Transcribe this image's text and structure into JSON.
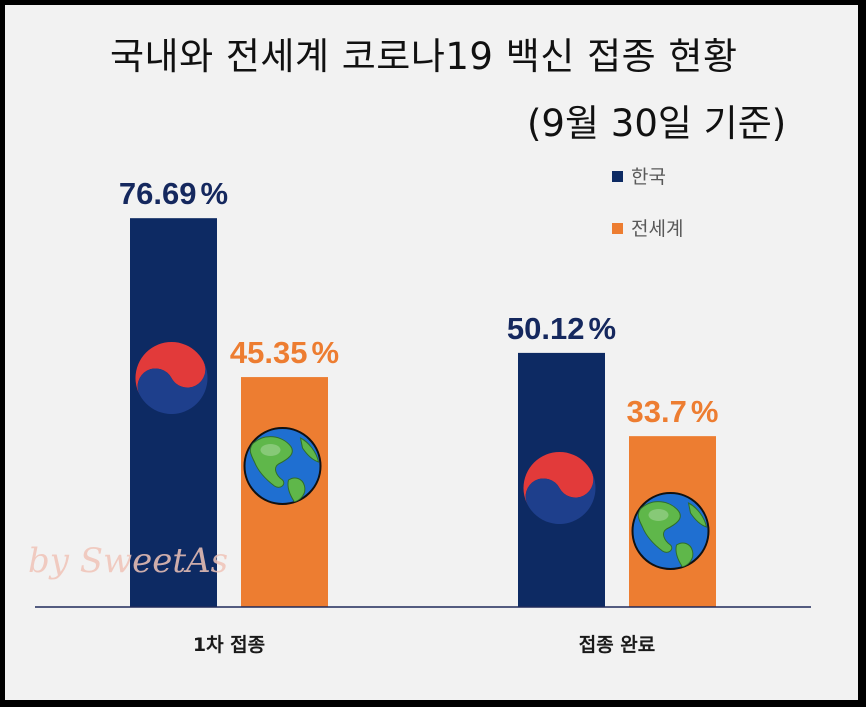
{
  "title": {
    "line1": "국내와 전세계 코로나19 백신 접종 현황",
    "line2": "(9월 30일 기준)"
  },
  "watermark": "by SweetAs",
  "colors": {
    "korea": "#0d2a63",
    "world": "#ed7d31",
    "korea_label": "#15285e",
    "world_label": "#ed7d31",
    "axis": "#1f2a5a",
    "legend_text": "#595959"
  },
  "icons": {
    "korea_marker": "taegeuk-icon",
    "world_marker": "globe-icon"
  },
  "chart_data": {
    "type": "bar",
    "categories": [
      "1차 접종",
      "접종 완료"
    ],
    "series": [
      {
        "name": "한국",
        "values": [
          76.69,
          50.12
        ],
        "labels": [
          "76.69",
          "50.12"
        ],
        "color": "#0d2a63"
      },
      {
        "name": "전세계",
        "values": [
          45.35,
          33.7
        ],
        "labels": [
          "45.35",
          "33.7"
        ],
        "color": "#ed7d31"
      }
    ],
    "value_suffix": "%",
    "ylim": [
      0,
      100
    ],
    "grid": false,
    "legend_position": "top-right"
  }
}
